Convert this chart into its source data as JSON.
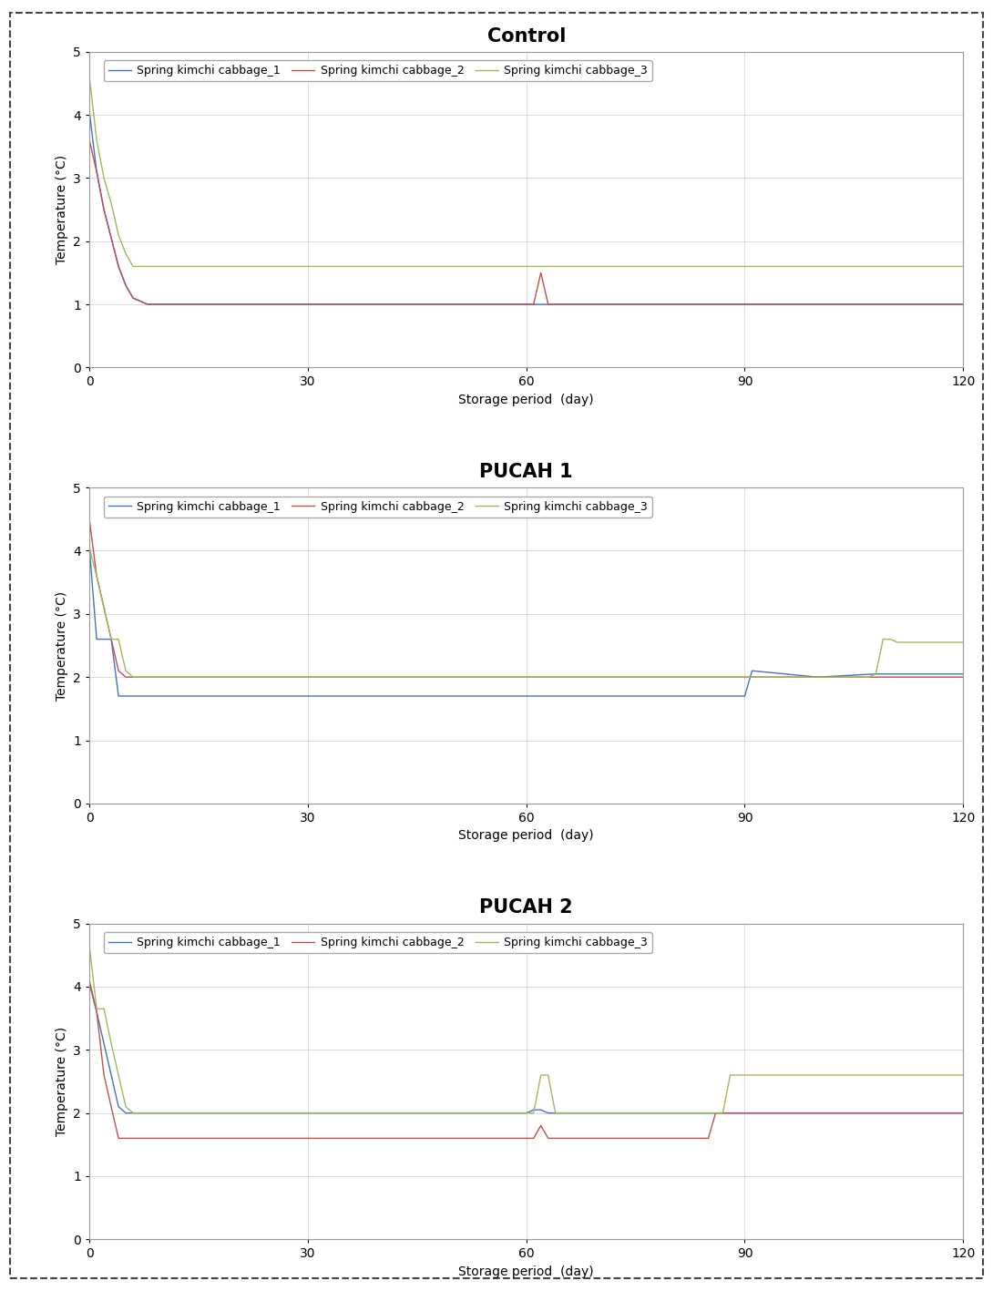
{
  "panels": [
    {
      "title": "Control",
      "series": [
        {
          "label": "Spring kimchi cabbage_1",
          "color": "#4472C4",
          "x": [
            0,
            1,
            2,
            3,
            4,
            5,
            6,
            7,
            8,
            10,
            12,
            14,
            16,
            18,
            20,
            120
          ],
          "y": [
            4.05,
            3.1,
            2.5,
            2.05,
            1.6,
            1.3,
            1.1,
            1.05,
            1.0,
            1.0,
            1.0,
            1.0,
            1.0,
            1.0,
            1.0,
            1.0
          ]
        },
        {
          "label": "Spring kimchi cabbage_2",
          "color": "#C0504D",
          "x": [
            0,
            1,
            2,
            3,
            4,
            5,
            6,
            7,
            8,
            10,
            12,
            14,
            16,
            18,
            20,
            61,
            62,
            63,
            64,
            120
          ],
          "y": [
            3.6,
            3.1,
            2.5,
            2.05,
            1.6,
            1.3,
            1.1,
            1.05,
            1.0,
            1.0,
            1.0,
            1.0,
            1.0,
            1.0,
            1.0,
            1.0,
            1.5,
            1.0,
            1.0,
            1.0
          ]
        },
        {
          "label": "Spring kimchi cabbage_3",
          "color": "#9BBB59",
          "x": [
            0,
            1,
            2,
            3,
            4,
            5,
            6,
            7,
            8,
            10,
            12,
            14,
            16,
            18,
            20,
            120
          ],
          "y": [
            4.6,
            3.6,
            3.0,
            2.6,
            2.1,
            1.8,
            1.6,
            1.6,
            1.6,
            1.6,
            1.6,
            1.6,
            1.6,
            1.6,
            1.6,
            1.6
          ]
        }
      ]
    },
    {
      "title": "PUCAH 1",
      "series": [
        {
          "label": "Spring kimchi cabbage_1",
          "color": "#4472C4",
          "x": [
            0,
            1,
            2,
            3,
            4,
            5,
            6,
            7,
            8,
            10,
            15,
            20,
            55,
            60,
            65,
            88,
            89,
            90,
            91,
            100,
            108,
            109,
            110,
            111,
            112,
            113,
            114,
            115,
            116,
            117,
            118,
            119,
            120
          ],
          "y": [
            4.05,
            2.6,
            2.6,
            2.6,
            1.7,
            1.7,
            1.7,
            1.7,
            1.7,
            1.7,
            1.7,
            1.7,
            1.7,
            1.7,
            1.7,
            1.7,
            1.7,
            1.7,
            2.1,
            2.0,
            2.05,
            2.05,
            2.05,
            2.05,
            2.05,
            2.05,
            2.05,
            2.05,
            2.05,
            2.05,
            2.05,
            2.05,
            2.05
          ]
        },
        {
          "label": "Spring kimchi cabbage_2",
          "color": "#C0504D",
          "x": [
            0,
            1,
            2,
            3,
            4,
            5,
            6,
            7,
            8,
            10,
            15,
            20,
            120
          ],
          "y": [
            4.5,
            3.6,
            3.1,
            2.6,
            2.1,
            2.0,
            2.0,
            2.0,
            2.0,
            2.0,
            2.0,
            2.0,
            2.0
          ]
        },
        {
          "label": "Spring kimchi cabbage_3",
          "color": "#9BBB59",
          "x": [
            0,
            1,
            2,
            3,
            4,
            5,
            6,
            7,
            8,
            10,
            15,
            20,
            107,
            108,
            109,
            110,
            111,
            114,
            115,
            119,
            120
          ],
          "y": [
            4.05,
            3.6,
            3.1,
            2.6,
            2.6,
            2.1,
            2.0,
            2.0,
            2.0,
            2.0,
            2.0,
            2.0,
            2.0,
            2.05,
            2.6,
            2.6,
            2.55,
            2.55,
            2.55,
            2.55,
            2.55
          ]
        }
      ]
    },
    {
      "title": "PUCAH 2",
      "series": [
        {
          "label": "Spring kimchi cabbage_1",
          "color": "#4472C4",
          "x": [
            0,
            1,
            2,
            3,
            4,
            5,
            6,
            7,
            8,
            10,
            15,
            20,
            60,
            61,
            62,
            63,
            64,
            65,
            70,
            80,
            90,
            120
          ],
          "y": [
            4.05,
            3.6,
            3.1,
            2.6,
            2.1,
            2.0,
            2.0,
            2.0,
            2.0,
            2.0,
            2.0,
            2.0,
            2.0,
            2.05,
            2.05,
            2.0,
            2.0,
            2.0,
            2.0,
            2.0,
            2.0,
            2.0
          ]
        },
        {
          "label": "Spring kimchi cabbage_2",
          "color": "#C0504D",
          "x": [
            0,
            1,
            2,
            3,
            4,
            5,
            6,
            7,
            8,
            10,
            15,
            20,
            60,
            61,
            62,
            63,
            64,
            65,
            70,
            75,
            80,
            85,
            86,
            87,
            88,
            89,
            90,
            120
          ],
          "y": [
            4.1,
            3.6,
            2.6,
            2.1,
            1.6,
            1.6,
            1.6,
            1.6,
            1.6,
            1.6,
            1.6,
            1.6,
            1.6,
            1.6,
            1.8,
            1.6,
            1.6,
            1.6,
            1.6,
            1.6,
            1.6,
            1.6,
            2.0,
            2.0,
            2.0,
            2.0,
            2.0,
            2.0
          ]
        },
        {
          "label": "Spring kimchi cabbage_3",
          "color": "#9BBB59",
          "x": [
            0,
            1,
            2,
            3,
            4,
            5,
            6,
            7,
            8,
            10,
            15,
            20,
            60,
            61,
            62,
            63,
            64,
            65,
            66,
            87,
            88,
            89,
            90,
            120
          ],
          "y": [
            4.65,
            3.65,
            3.65,
            3.1,
            2.6,
            2.1,
            2.0,
            2.0,
            2.0,
            2.0,
            2.0,
            2.0,
            2.0,
            2.0,
            2.6,
            2.6,
            2.0,
            2.0,
            2.0,
            2.0,
            2.6,
            2.6,
            2.6,
            2.6
          ]
        }
      ]
    }
  ],
  "xlim": [
    0,
    120
  ],
  "ylim": [
    0,
    5
  ],
  "xticks": [
    0,
    30,
    60,
    90,
    120
  ],
  "yticks": [
    0,
    1,
    2,
    3,
    4,
    5
  ],
  "xlabel": "Storage period  (day)",
  "ylabel": "Temperature (°C)",
  "bg_color": "#FFFFFF",
  "grid_color": "#CCCCCC",
  "title_fontsize": 15,
  "label_fontsize": 10,
  "tick_fontsize": 10,
  "legend_fontsize": 9,
  "outer_border_color": "#888888",
  "panel_border_color": "#888888"
}
